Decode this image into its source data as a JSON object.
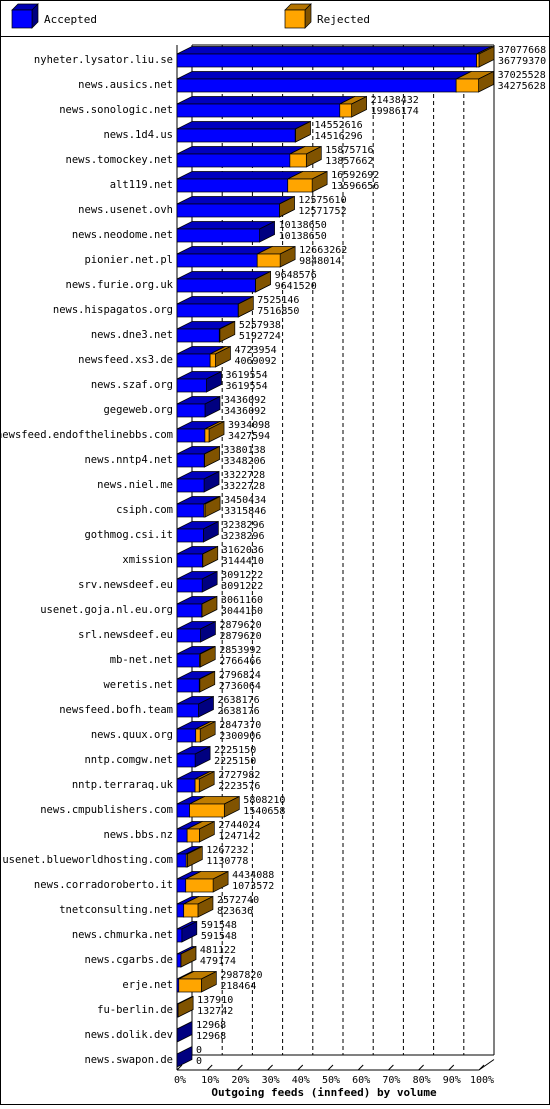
{
  "chart_data": {
    "type": "bar",
    "orientation": "horizontal",
    "style": "3d",
    "title": "Outgoing feeds (innfeed) by volume",
    "categories": [
      "nyheter.lysator.liu.se",
      "news.ausics.net",
      "news.sonologic.net",
      "news.1d4.us",
      "news.tomockey.net",
      "alt119.net",
      "news.usenet.ovh",
      "news.neodome.net",
      "pionier.net.pl",
      "news.furie.org.uk",
      "news.hispagatos.org",
      "news.dne3.net",
      "newsfeed.xs3.de",
      "news.szaf.org",
      "gegeweb.org",
      "newsfeed.endofthelinebbs.com",
      "news.nntp4.net",
      "news.niel.me",
      "csiph.com",
      "gothmog.csi.it",
      "xmission",
      "srv.newsdeef.eu",
      "usenet.goja.nl.eu.org",
      "srl.newsdeef.eu",
      "mb-net.net",
      "weretis.net",
      "newsfeed.bofh.team",
      "news.quux.org",
      "nntp.comgw.net",
      "nntp.terraraq.uk",
      "news.cmpublishers.com",
      "news.bbs.nz",
      "usenet.blueworldhosting.com",
      "news.corradoroberto.it",
      "tnetconsulting.net",
      "news.chmurka.net",
      "news.cgarbs.de",
      "erje.net",
      "fu-berlin.de",
      "news.dolik.dev",
      "news.swapon.de"
    ],
    "series": [
      {
        "name": "Accepted",
        "color": "#0000ff",
        "values": [
          36779370,
          34275628,
          19986174,
          14516296,
          13857662,
          13596656,
          12571752,
          10138650,
          9848014,
          9641520,
          7516850,
          5192724,
          4069092,
          3619554,
          3436092,
          3427594,
          3348206,
          3322728,
          3315846,
          3238296,
          3144410,
          3091222,
          3044160,
          2879620,
          2766466,
          2736064,
          2638176,
          2300906,
          2225150,
          2223576,
          1540658,
          1247142,
          1130778,
          1073572,
          823636,
          591548,
          479174,
          218464,
          132742,
          12968,
          0
        ]
      },
      {
        "name": "Rejected",
        "color": "#ffa500",
        "values": [
          298298,
          2749900,
          1452258,
          36320,
          2018054,
          2996036,
          3858,
          0,
          2815248,
          7056,
          8296,
          65214,
          654862,
          0,
          0,
          506504,
          31932,
          0,
          134588,
          0,
          17626,
          0,
          17000,
          0,
          87526,
          60760,
          0,
          546464,
          0,
          504406,
          4267552,
          1496882,
          136454,
          3360516,
          1749104,
          0,
          1948,
          2769356,
          5168,
          0,
          0
        ]
      }
    ],
    "value_labels_total": [
      "37077668",
      "37025528",
      "21438432",
      "14552616",
      "15875716",
      "16592692",
      "12575610",
      "10138650",
      "12663262",
      "9648576",
      "7525146",
      "5257938",
      "4723954",
      "3619554",
      "3436092",
      "3934098",
      "3380138",
      "3322728",
      "3450434",
      "3238296",
      "3162036",
      "3091222",
      "3061160",
      "2879620",
      "2853992",
      "2796824",
      "2638176",
      "2847370",
      "2225150",
      "2727982",
      "5808210",
      "2744024",
      "1267232",
      "4434088",
      "2572740",
      "591548",
      "481122",
      "2987820",
      "137910",
      "12968",
      "0"
    ],
    "value_labels_accepted": [
      "36779370",
      "34275628",
      "19986174",
      "14516296",
      "13857662",
      "13596656",
      "12571752",
      "10138650",
      "9848014",
      "9641520",
      "7516850",
      "5192724",
      "4069092",
      "3619554",
      "3436092",
      "3427594",
      "3348206",
      "3322728",
      "3315846",
      "3238296",
      "3144410",
      "3091222",
      "3044160",
      "2879620",
      "2766466",
      "2736064",
      "2638176",
      "2300906",
      "2225150",
      "2223576",
      "1540658",
      "1247142",
      "1130778",
      "1073572",
      "823636",
      "591548",
      "479174",
      "218464",
      "132742",
      "12968",
      "0"
    ],
    "xaxis": {
      "ticks": [
        "0%",
        "10%",
        "20%",
        "30%",
        "40%",
        "50%",
        "60%",
        "70%",
        "80%",
        "90%",
        "100%"
      ],
      "max": 37077668,
      "grid": "dashed-vertical"
    },
    "legend": {
      "placement": "top",
      "items": [
        "Accepted",
        "Rejected"
      ]
    }
  }
}
